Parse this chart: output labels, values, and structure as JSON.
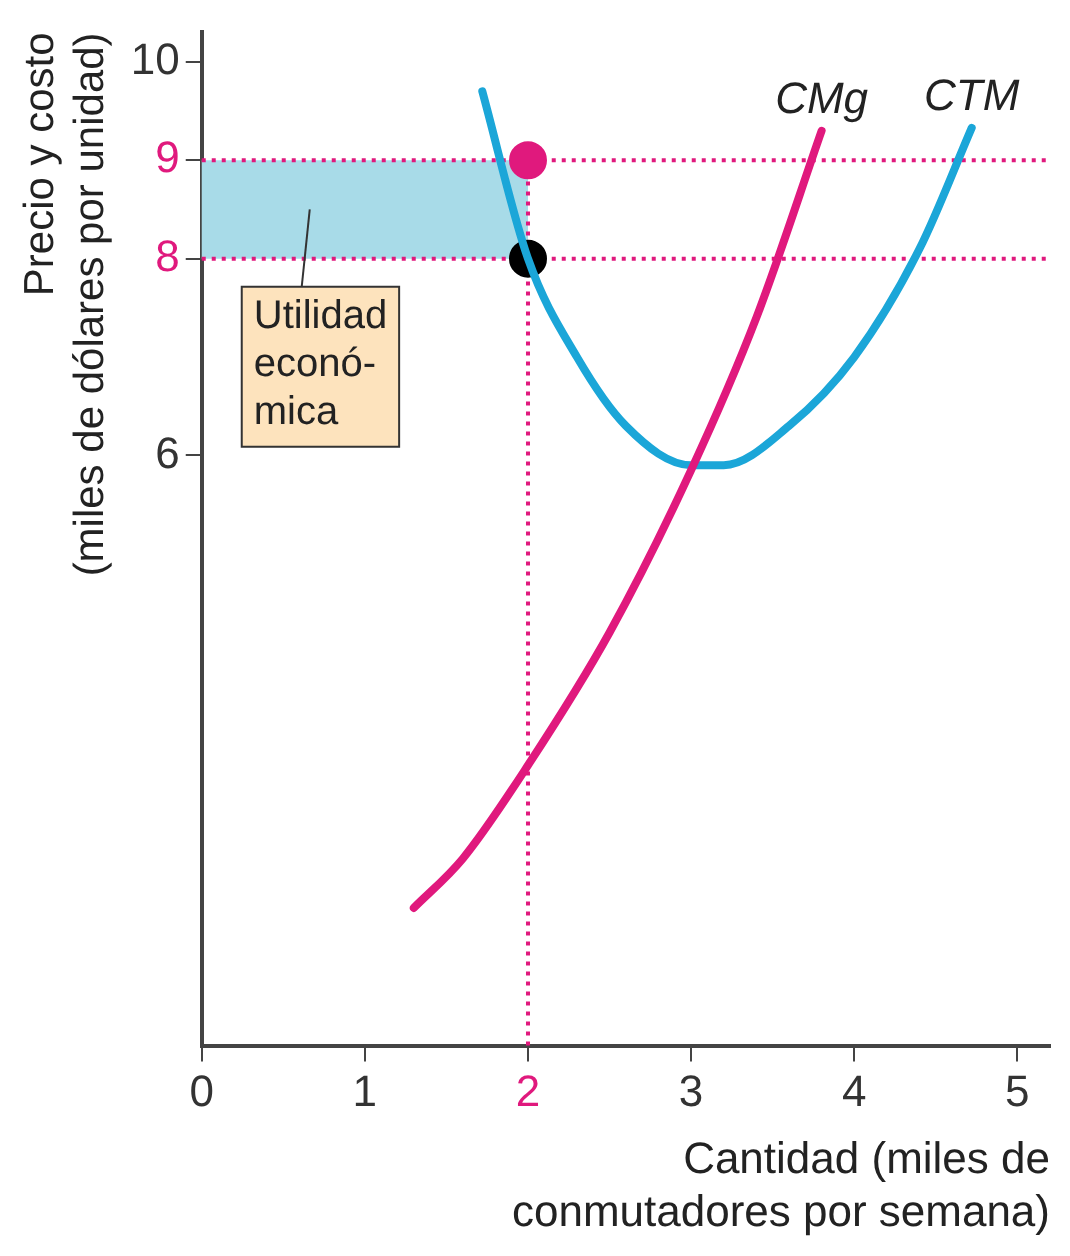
{
  "chart_data": {
    "type": "line",
    "xlabel": "Cantidad (miles de\nconmutadores por semana)",
    "ylabel": "Precio y costo\n(miles de dólares por unidad)",
    "xlim": [
      0,
      5.2
    ],
    "xticks": [
      0,
      1,
      2,
      3,
      4,
      5
    ],
    "ylim": [
      0,
      10.3
    ],
    "yticks": [
      6,
      8,
      9,
      10
    ],
    "series": [
      {
        "name": "CMg",
        "color": "#e0197d",
        "x": [
          1.3,
          1.6,
          2,
          2.5,
          3,
          3.4,
          3.8
        ],
        "values": [
          1.4,
          1.9,
          2.85,
          4.2,
          5.85,
          7.4,
          9.3
        ],
        "marker": "none"
      },
      {
        "name": "CTM",
        "color": "#1ba6d8",
        "x": [
          1.72,
          2,
          2.3,
          2.6,
          3,
          3.2,
          3.6,
          4,
          4.4,
          4.72
        ],
        "values": [
          9.7,
          8,
          7,
          6.3,
          5.9,
          5.9,
          6.3,
          7,
          8.1,
          9.33
        ],
        "marker": "none"
      },
      {
        "type": "scatter",
        "color": "#e0197d",
        "x": [
          2
        ],
        "values": [
          9
        ],
        "marker": "circle"
      },
      {
        "type": "scatter",
        "color": "#000000",
        "x": [
          2
        ],
        "values": [
          8
        ],
        "marker": "circle"
      }
    ],
    "ref_lines": [
      {
        "axis": "y",
        "value": 9,
        "color": "#e0197d",
        "line_style": "dotted"
      },
      {
        "axis": "y",
        "value": 8,
        "color": "#e0197d",
        "line_style": "dotted"
      },
      {
        "axis": "x",
        "value": 2,
        "color": "#e0197d",
        "line_style": "dotted"
      }
    ],
    "bands": [
      {
        "axis": "y",
        "from": 8,
        "to": 9,
        "label": "Utilidad\neconó-\nmica",
        "color": "#a8dbe8"
      }
    ],
    "grid": false,
    "legend": false,
    "line_style": "solid"
  }
}
